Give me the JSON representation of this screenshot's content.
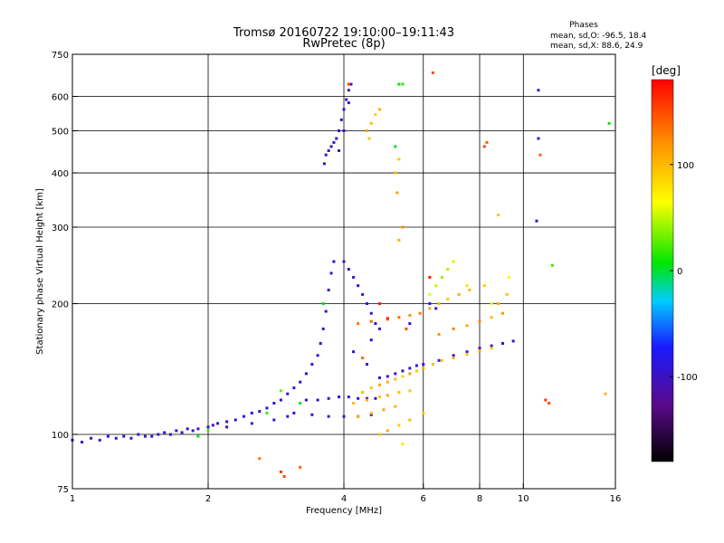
{
  "chart_data": {
    "type": "scatter",
    "title": "Tromsø 20160722 19:10:00–19:11:43",
    "subtitle": "RwPretec (8p)",
    "xlabel": "Frequency [MHz]",
    "ylabel": "Stationary phase Virtual Height [km]",
    "x_scale": "log",
    "y_scale": "log",
    "xlim": [
      1,
      16
    ],
    "ylim": [
      75,
      750
    ],
    "x_ticks": [
      1,
      2,
      4,
      6,
      8,
      10,
      16
    ],
    "y_ticks": [
      75,
      100,
      200,
      300,
      400,
      500,
      600,
      750
    ],
    "x_gridlines": [
      2,
      4,
      6,
      8,
      10
    ],
    "y_gridlines": [
      100,
      200,
      300,
      400,
      500,
      600
    ],
    "grid": true,
    "phases_info": {
      "title": "Phases",
      "line_o": "mean, sd,O: -96.5, 18.4",
      "line_x": "mean, sd,X:  88.6, 24.9"
    },
    "colorbar": {
      "label": "[deg]",
      "range": [
        -180,
        180
      ],
      "ticks": [
        100,
        0,
        -100
      ],
      "colors": [
        "#000000",
        "#5a0a8c",
        "#1a1aff",
        "#00ccff",
        "#00e600",
        "#ffff00",
        "#ff8c00",
        "#ff0000"
      ]
    },
    "series": [
      {
        "points": [
          [
            1.0,
            97,
            -90
          ],
          [
            1.05,
            96,
            -95
          ],
          [
            1.1,
            98,
            -88
          ],
          [
            1.15,
            97,
            -92
          ],
          [
            1.2,
            99,
            -95
          ],
          [
            1.25,
            98,
            -90
          ],
          [
            1.3,
            99,
            -100
          ],
          [
            1.35,
            98,
            -85
          ],
          [
            1.4,
            100,
            -92
          ],
          [
            1.45,
            99,
            -97
          ],
          [
            1.5,
            99,
            -89
          ],
          [
            1.55,
            100,
            -96
          ],
          [
            1.6,
            101,
            -93
          ],
          [
            1.65,
            100,
            -105
          ],
          [
            1.7,
            102,
            -90
          ],
          [
            1.75,
            101,
            -98
          ],
          [
            1.8,
            103,
            -92
          ],
          [
            1.85,
            102,
            -100
          ],
          [
            1.9,
            103,
            -95
          ],
          [
            2.0,
            104,
            -90
          ],
          [
            2.05,
            105,
            -98
          ],
          [
            2.1,
            106,
            -95
          ],
          [
            2.2,
            107,
            -92
          ],
          [
            2.3,
            108,
            -100
          ],
          [
            2.4,
            110,
            -95
          ],
          [
            2.5,
            112,
            -88
          ],
          [
            2.6,
            113,
            -96
          ],
          [
            2.7,
            115,
            -92
          ],
          [
            2.8,
            118,
            -99
          ],
          [
            2.9,
            120,
            -94
          ],
          [
            3.0,
            124,
            -97
          ],
          [
            3.1,
            128,
            -90
          ],
          [
            3.2,
            132,
            -96
          ],
          [
            3.3,
            138,
            -92
          ],
          [
            3.4,
            145,
            -98
          ],
          [
            3.5,
            152,
            -95
          ],
          [
            3.55,
            162,
            -90
          ],
          [
            3.6,
            175,
            -97
          ],
          [
            3.65,
            192,
            -93
          ],
          [
            3.7,
            215,
            -99
          ],
          [
            3.75,
            235,
            -95
          ],
          [
            3.8,
            250,
            -92
          ],
          [
            3.3,
            120,
            -96
          ],
          [
            3.5,
            120,
            -93
          ],
          [
            3.7,
            121,
            -98
          ],
          [
            3.9,
            122,
            -94
          ],
          [
            4.1,
            122,
            -90
          ],
          [
            4.3,
            121,
            -97
          ],
          [
            4.5,
            121,
            -93
          ],
          [
            4.7,
            121,
            -96
          ],
          [
            3.1,
            112,
            -95
          ],
          [
            3.4,
            111,
            -92
          ],
          [
            3.7,
            110,
            -98
          ],
          [
            4.0,
            110,
            -94
          ],
          [
            4.3,
            110,
            -97
          ],
          [
            4.6,
            111,
            -91
          ],
          [
            2.2,
            104,
            -99
          ],
          [
            2.5,
            106,
            -94
          ],
          [
            2.8,
            108,
            -97
          ],
          [
            3.0,
            110,
            -92
          ],
          [
            3.62,
            420,
            -100
          ],
          [
            3.65,
            440,
            -96
          ],
          [
            3.7,
            450,
            -98
          ],
          [
            3.75,
            460,
            -93
          ],
          [
            3.8,
            470,
            -97
          ],
          [
            3.85,
            480,
            -94
          ],
          [
            3.9,
            500,
            -99
          ],
          [
            3.95,
            530,
            -95
          ],
          [
            4.0,
            560,
            -97
          ],
          [
            4.05,
            590,
            -93
          ],
          [
            4.1,
            620,
            -98
          ],
          [
            4.15,
            640,
            -95
          ],
          [
            3.9,
            450,
            -96
          ],
          [
            4.0,
            500,
            -92
          ],
          [
            4.1,
            580,
            -99
          ],
          [
            4.0,
            250,
            -95
          ],
          [
            4.1,
            240,
            -98
          ],
          [
            4.2,
            230,
            -93
          ],
          [
            4.3,
            220,
            -97
          ],
          [
            4.4,
            210,
            -94
          ],
          [
            4.5,
            200,
            -96
          ],
          [
            4.6,
            190,
            -92
          ],
          [
            4.7,
            180,
            -98
          ],
          [
            4.8,
            175,
            -95
          ],
          [
            4.8,
            135,
            -94
          ],
          [
            5.0,
            136,
            -97
          ],
          [
            5.2,
            138,
            -93
          ],
          [
            5.4,
            140,
            -98
          ],
          [
            5.6,
            142,
            -95
          ],
          [
            5.8,
            144,
            -92
          ],
          [
            6.0,
            145,
            -97
          ],
          [
            6.5,
            148,
            -94
          ],
          [
            7.0,
            152,
            -98
          ],
          [
            7.5,
            155,
            -93
          ],
          [
            8.0,
            158,
            -96
          ],
          [
            8.5,
            160,
            -95
          ],
          [
            9.0,
            162,
            -92
          ],
          [
            9.5,
            164,
            -97
          ],
          [
            6.2,
            200,
            -90
          ],
          [
            6.4,
            195,
            -95
          ],
          [
            5.6,
            180,
            -92
          ],
          [
            4.2,
            155,
            -94
          ],
          [
            4.4,
            150,
            -98
          ],
          [
            4.5,
            145,
            -93
          ],
          [
            4.6,
            165,
            -96
          ],
          [
            10.8,
            620,
            -100
          ],
          [
            10.8,
            480,
            -95
          ],
          [
            10.7,
            310,
            -98
          ],
          [
            11.6,
            245,
            20
          ],
          [
            15.5,
            520,
            10
          ],
          [
            1.9,
            99,
            10
          ],
          [
            2.0,
            102,
            20
          ],
          [
            2.7,
            112,
            20
          ],
          [
            3.2,
            118,
            10
          ],
          [
            2.9,
            126,
            30
          ],
          [
            3.6,
            200,
            5
          ]
        ]
      },
      {
        "points": [
          [
            4.5,
            500,
            110
          ],
          [
            4.6,
            520,
            100
          ],
          [
            4.7,
            545,
            90
          ],
          [
            4.55,
            480,
            95
          ],
          [
            4.8,
            560,
            105
          ],
          [
            5.2,
            400,
            100
          ],
          [
            5.3,
            430,
            95
          ],
          [
            5.25,
            360,
            110
          ],
          [
            5.3,
            280,
            105
          ],
          [
            5.4,
            640,
            15
          ],
          [
            5.3,
            640,
            10
          ],
          [
            5.2,
            460,
            5
          ],
          [
            5.4,
            300,
            120
          ],
          [
            4.4,
            125,
            100
          ],
          [
            4.6,
            128,
            95
          ],
          [
            4.8,
            130,
            110
          ],
          [
            5.0,
            132,
            105
          ],
          [
            5.2,
            134,
            100
          ],
          [
            5.4,
            136,
            90
          ],
          [
            5.6,
            138,
            115
          ],
          [
            5.8,
            140,
            95
          ],
          [
            6.0,
            142,
            108
          ],
          [
            6.3,
            145,
            100
          ],
          [
            6.6,
            148,
            92
          ],
          [
            7.0,
            150,
            105
          ],
          [
            7.5,
            153,
            98
          ],
          [
            8.0,
            156,
            110
          ],
          [
            8.5,
            158,
            95
          ],
          [
            4.2,
            118,
            100
          ],
          [
            4.5,
            120,
            108
          ],
          [
            4.8,
            122,
            95
          ],
          [
            5.0,
            123,
            110
          ],
          [
            5.3,
            125,
            100
          ],
          [
            5.6,
            126,
            92
          ],
          [
            4.3,
            110,
            105
          ],
          [
            4.6,
            112,
            95
          ],
          [
            4.9,
            114,
            110
          ],
          [
            5.2,
            116,
            100
          ],
          [
            4.3,
            180,
            130
          ],
          [
            4.6,
            182,
            140
          ],
          [
            5.0,
            184,
            125
          ],
          [
            5.3,
            186,
            135
          ],
          [
            5.6,
            188,
            120
          ],
          [
            5.9,
            190,
            130
          ],
          [
            6.2,
            195,
            110
          ],
          [
            6.5,
            200,
            100
          ],
          [
            6.8,
            205,
            95
          ],
          [
            7.2,
            210,
            105
          ],
          [
            7.6,
            215,
            100
          ],
          [
            8.2,
            220,
            90
          ],
          [
            6.2,
            210,
            60
          ],
          [
            6.4,
            220,
            50
          ],
          [
            6.6,
            230,
            40
          ],
          [
            6.8,
            240,
            45
          ],
          [
            7.0,
            250,
            55
          ],
          [
            6.5,
            170,
            120
          ],
          [
            7.0,
            175,
            130
          ],
          [
            7.5,
            178,
            110
          ],
          [
            8.0,
            182,
            125
          ],
          [
            8.5,
            186,
            100
          ],
          [
            9.0,
            190,
            115
          ],
          [
            8.8,
            200,
            105
          ],
          [
            9.2,
            210,
            95
          ],
          [
            5.3,
            105,
            90
          ],
          [
            5.6,
            108,
            100
          ],
          [
            5.0,
            102,
            110
          ],
          [
            4.8,
            100,
            95
          ],
          [
            5.4,
            95,
            80
          ],
          [
            6.0,
            112,
            95
          ],
          [
            6.3,
            680,
            150
          ],
          [
            8.3,
            470,
            140
          ],
          [
            8.2,
            460,
            150
          ],
          [
            8.8,
            320,
            95
          ],
          [
            10.9,
            440,
            140
          ],
          [
            11.2,
            120,
            160
          ],
          [
            11.4,
            118,
            150
          ],
          [
            15.2,
            124,
            100
          ],
          [
            2.9,
            82,
            160
          ],
          [
            2.95,
            80,
            150
          ],
          [
            2.6,
            88,
            130
          ],
          [
            3.2,
            84,
            140
          ],
          [
            4.8,
            200,
            170
          ],
          [
            5.0,
            185,
            165
          ],
          [
            5.5,
            175,
            150
          ],
          [
            4.1,
            640,
            150
          ],
          [
            4.4,
            150,
            130
          ],
          [
            6.2,
            230,
            170
          ],
          [
            7.5,
            220,
            80
          ],
          [
            8.5,
            200,
            60
          ],
          [
            9.3,
            230,
            70
          ]
        ]
      }
    ]
  }
}
